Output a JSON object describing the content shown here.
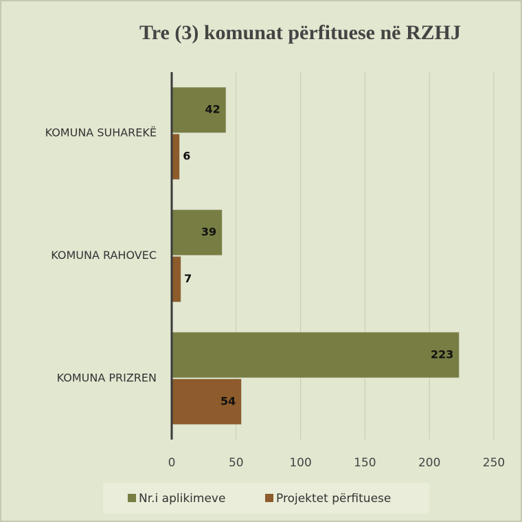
{
  "chart_data": {
    "type": "bar",
    "orientation": "horizontal",
    "title": "Tre (3) komunat përfituese në RZHJ",
    "categories": [
      "KOMUNA SUHAREKË",
      "KOMUNA RAHOVEC",
      "KOMUNA PRIZREN"
    ],
    "series": [
      {
        "name": "Nr.i aplikimeve",
        "color": "#787d43",
        "values": [
          42,
          39,
          223
        ]
      },
      {
        "name": "Projektet përfituese",
        "color": "#8d5b2c",
        "values": [
          6,
          7,
          54
        ]
      }
    ],
    "xlim": [
      0,
      250
    ],
    "xticks": [
      0,
      50,
      100,
      150,
      200,
      250
    ],
    "grid": true,
    "legend": "bottom"
  }
}
